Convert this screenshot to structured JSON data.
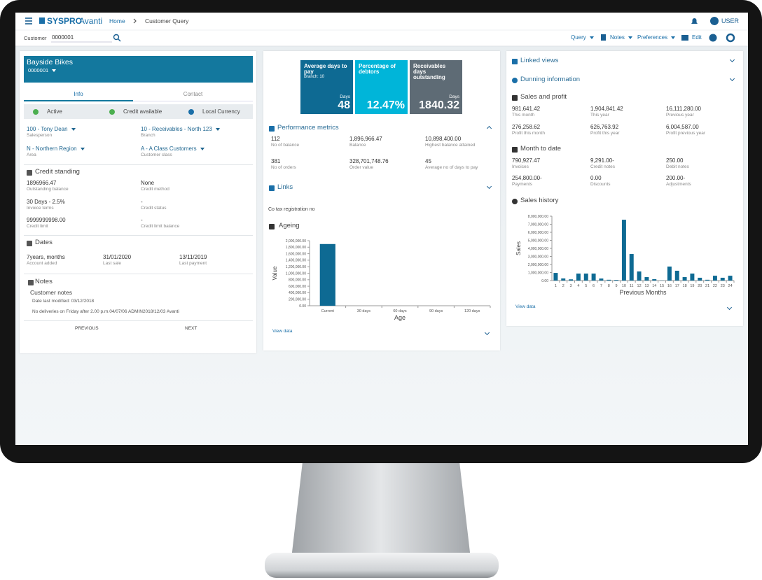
{
  "header": {
    "logo": "SYSPRO",
    "product": "Avanti",
    "breadcrumb": [
      "Home",
      "Customer Query"
    ],
    "user": "USER"
  },
  "toolbar": {
    "customer_label": "Customer",
    "customer_value": "0000001",
    "menus": [
      "Query",
      "Notes",
      "Preferences",
      "Edit"
    ]
  },
  "customer": {
    "name": "Bayside Bikes",
    "code": "0000001",
    "tabs": [
      "Info",
      "Contact"
    ],
    "status": [
      "Active",
      "Credit available",
      "Local Currency"
    ],
    "fields": [
      {
        "value": "100 - Tony Dean",
        "label": "Salesperson"
      },
      {
        "value": "10 - Receivables - North 123",
        "label": "Branch"
      },
      {
        "value": "N - Northern Region",
        "label": "Area"
      },
      {
        "value": "A - A Class Customers",
        "label": "Customer class"
      }
    ],
    "credit_standing": {
      "title": "Credit standing",
      "fields": [
        {
          "value": "1896966.47",
          "label": "Outstanding balance"
        },
        {
          "value": "None",
          "label": "Credit method"
        },
        {
          "value": "30 Days - 2.5%",
          "label": "Invoice terms"
        },
        {
          "value": "-",
          "label": "Credit status"
        },
        {
          "value": "9999999998.00",
          "label": "Credit limit"
        },
        {
          "value": "-",
          "label": "Credit limit balance"
        }
      ]
    },
    "dates": {
      "title": "Dates",
      "fields": [
        {
          "value": "7years,  months",
          "label": "Account added"
        },
        {
          "value": "31/01/2020",
          "label": "Last sale"
        },
        {
          "value": "13/11/2019",
          "label": "Last payment"
        }
      ]
    },
    "notes": {
      "title": "Notes",
      "heading": "Customer notes",
      "modified": "Date last modified: 03/12/2018",
      "text": "No deliveries on Friday after 2.00 p.m.04/07/06 ADMIN2018/12/03 Avanti",
      "previous": "PREVIOUS",
      "next": "NEXT"
    }
  },
  "kpis": [
    {
      "title": "Average days to pay",
      "subtitle": "Branch: 10",
      "unit": "Days",
      "value": "48",
      "color": "#0e6a93"
    },
    {
      "title": "Percentage of debtors",
      "value": "12.47%",
      "color": "#00b5d9"
    },
    {
      "title": "Receivables days outstanding",
      "unit": "Days",
      "value": "1840.32",
      "color": "#5e6b75"
    }
  ],
  "performance": {
    "title": "Performance metrics",
    "fields": [
      {
        "value": "112",
        "label": "No of balance"
      },
      {
        "value": "1,896,966.47",
        "label": "Balance"
      },
      {
        "value": "10,898,400.00",
        "label": "Highest balance attained"
      },
      {
        "value": "381",
        "label": "No of orders"
      },
      {
        "value": "328,701,748.76",
        "label": "Order value"
      },
      {
        "value": "45",
        "label": "Average no of days to pay"
      }
    ]
  },
  "links": {
    "title": "Links",
    "text": "Co tax registration no"
  },
  "ageing": {
    "title": "Ageing",
    "view_data": "View data",
    "chart": {
      "type": "bar",
      "x_label": "Age",
      "y_label": "Value",
      "color": "#0e6a93",
      "categories": [
        "Current",
        "30 days",
        "60 days",
        "90 days",
        "120 days"
      ],
      "values": [
        1896966.47,
        0,
        0,
        0,
        0
      ],
      "ylim": [
        0,
        2000000
      ],
      "yticks": [
        {
          "value": 0,
          "label": "0.00"
        },
        {
          "value": 200000,
          "label": "200,000.00"
        },
        {
          "value": 400000,
          "label": "400,000.00"
        },
        {
          "value": 600000,
          "label": "600,000.00"
        },
        {
          "value": 800000,
          "label": "800,000.00"
        },
        {
          "value": 1000000,
          "label": "1,000,000.00"
        },
        {
          "value": 1200000,
          "label": "1,200,000.00"
        },
        {
          "value": 1400000,
          "label": "1,400,000.00"
        },
        {
          "value": 1600000,
          "label": "1,600,000.00"
        },
        {
          "value": 1800000,
          "label": "1,800,000.00"
        },
        {
          "value": 2000000,
          "label": "2,000,000.00"
        }
      ]
    }
  },
  "linked_views": "Linked views",
  "dunning": "Dunning information",
  "sales_profit": {
    "title": "Sales and profit",
    "fields": [
      {
        "value": "981,641.42",
        "label": "This month"
      },
      {
        "value": "1,904,841.42",
        "label": "This year"
      },
      {
        "value": "16,111,280.00",
        "label": "Previous year"
      },
      {
        "value": "276,258.62",
        "label": "Profit this month"
      },
      {
        "value": "626,763.92",
        "label": "Profit this year"
      },
      {
        "value": "6,004,587.00",
        "label": "Profit previous year"
      }
    ]
  },
  "month_to_date": {
    "title": "Month to date",
    "fields": [
      {
        "value": "790,927.47",
        "label": "Invoices"
      },
      {
        "value": "9,291.00-",
        "label": "Credit notes"
      },
      {
        "value": "250.00",
        "label": "Debit notes"
      },
      {
        "value": "254,800.00-",
        "label": "Payments"
      },
      {
        "value": "0.00",
        "label": "Discounts"
      },
      {
        "value": "200.00-",
        "label": "Adjustments"
      }
    ]
  },
  "sales_history": {
    "title": "Sales history",
    "view_data": "View data",
    "chart": {
      "type": "bar",
      "x_label": "Previous Months",
      "y_label": "Sales",
      "color": "#0e6a93",
      "categories": [
        "1",
        "2",
        "3",
        "4",
        "5",
        "6",
        "7",
        "8",
        "9",
        "10",
        "11",
        "12",
        "13",
        "14",
        "15",
        "16",
        "17",
        "18",
        "19",
        "20",
        "21",
        "22",
        "23",
        "24"
      ],
      "values": [
        950000,
        260000,
        150000,
        870000,
        870000,
        870000,
        250000,
        100000,
        80000,
        7560000,
        3300000,
        1130000,
        430000,
        170000,
        20000,
        1740000,
        1220000,
        430000,
        870000,
        350000,
        100000,
        600000,
        350000,
        600000
      ],
      "ylim": [
        0,
        8000000
      ],
      "yticks": [
        {
          "value": 0,
          "label": "0.00"
        },
        {
          "value": 1000000,
          "label": "1,000,000.00"
        },
        {
          "value": 2000000,
          "label": "2,000,000.00"
        },
        {
          "value": 3000000,
          "label": "3,000,000.00"
        },
        {
          "value": 4000000,
          "label": "4,000,000.00"
        },
        {
          "value": 5000000,
          "label": "5,000,000.00"
        },
        {
          "value": 6000000,
          "label": "6,000,000.00"
        },
        {
          "value": 7000000,
          "label": "7,000,000.00"
        },
        {
          "value": 8000000,
          "label": "8,000,000.00"
        }
      ]
    }
  }
}
